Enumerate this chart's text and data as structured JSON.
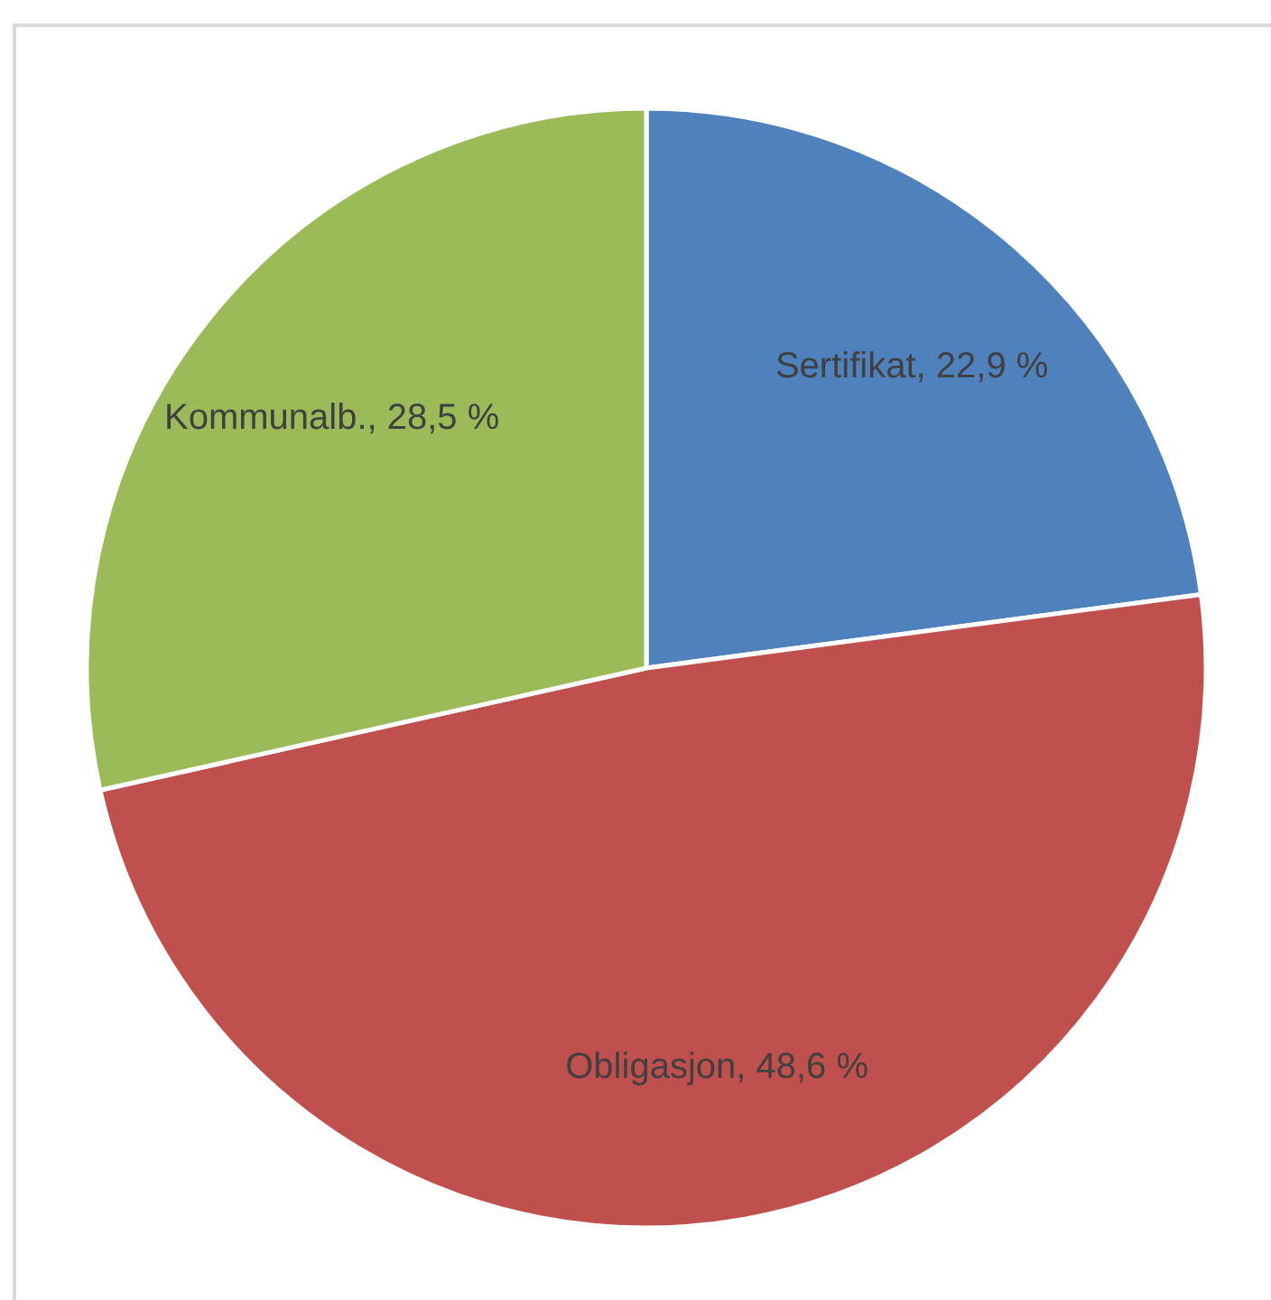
{
  "chart_data": {
    "type": "pie",
    "categories": [
      "Sertifikat",
      "Obligasjon",
      "Kommunalb."
    ],
    "values": [
      22.9,
      48.6,
      28.5
    ],
    "value_labels": [
      "22,9 %",
      "48,6 %",
      "28,5 %"
    ],
    "colors": [
      "#4f81bd",
      "#c0504d",
      "#9bbb59"
    ],
    "legend": false
  }
}
